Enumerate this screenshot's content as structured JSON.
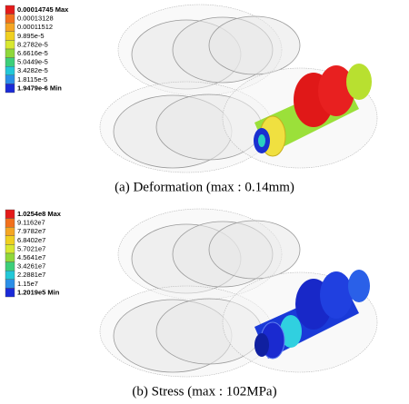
{
  "panels": [
    {
      "legend": [
        "0.00014745 Max",
        "0.00013128",
        "0.00011512",
        "9.895e-5",
        "8.2782e-5",
        "6.6616e-5",
        "5.0449e-5",
        "3.4282e-5",
        "1.8115e-5",
        "1.9479e-6 Min"
      ],
      "colors": [
        "#e41a1a",
        "#f2701c",
        "#f5a623",
        "#f0d020",
        "#d8e830",
        "#8fd83a",
        "#3ccf7a",
        "#22c8d8",
        "#2a8fe8",
        "#1a2ad8"
      ],
      "caption": "(a)  Deformation  (max  :  0.14mm)"
    },
    {
      "legend": [
        "1.0254e8 Max",
        "9.1162e7",
        "7.9782e7",
        "6.8402e7",
        "5.7021e7",
        "4.5641e7",
        "3.4261e7",
        "2.2881e7",
        "1.15e7",
        "1.2019e5 Min"
      ],
      "colors": [
        "#e41a1a",
        "#f2701c",
        "#f5a623",
        "#f0d020",
        "#d8e830",
        "#8fd83a",
        "#3ccf7a",
        "#22c8d8",
        "#2a8fe8",
        "#1a2ad8"
      ],
      "caption": "(b)  Stress  (max  :  102MPa)"
    }
  ]
}
